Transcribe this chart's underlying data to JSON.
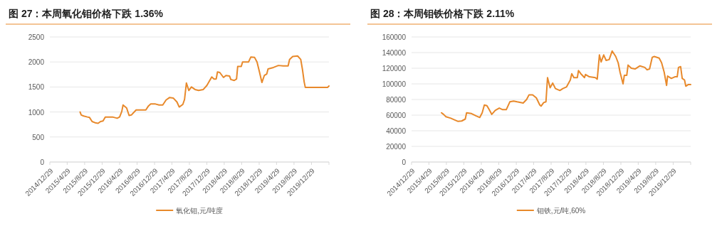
{
  "chart_data": [
    {
      "type": "line",
      "title": "图 27：本周氧化钼价格下跌 1.36%",
      "legend": "bottom",
      "grid": "y",
      "marker": "none",
      "line_style": "solid",
      "xlim": [
        "2014-12-29",
        "2020-04-29"
      ],
      "xticks": [
        {
          "value": "2014-12-29",
          "label": "2014/12/29"
        },
        {
          "value": "2015-04-29",
          "label": "2015/4/29"
        },
        {
          "value": "2015-08-29",
          "label": "2015/8/29"
        },
        {
          "value": "2015-12-29",
          "label": "2015/12/29"
        },
        {
          "value": "2016-04-29",
          "label": "2016/4/29"
        },
        {
          "value": "2016-08-29",
          "label": "2016/8/29"
        },
        {
          "value": "2016-12-29",
          "label": "2016/12/29"
        },
        {
          "value": "2017-04-29",
          "label": "2017/4/29"
        },
        {
          "value": "2017-08-29",
          "label": "2017/8/29"
        },
        {
          "value": "2017-12-29",
          "label": "2017/12/29"
        },
        {
          "value": "2018-04-29",
          "label": "2018/4/29"
        },
        {
          "value": "2018-08-29",
          "label": "2018/8/29"
        },
        {
          "value": "2018-12-29",
          "label": "2018/12/29"
        },
        {
          "value": "2019-04-29",
          "label": "2019/4/29"
        },
        {
          "value": "2019-08-29",
          "label": "2019/8/29"
        },
        {
          "value": "2019-12-29",
          "label": "2019/12/29"
        },
        {
          "value": "2020-04-29",
          "label": null
        }
      ],
      "ylim": [
        0,
        2500
      ],
      "yticks": [
        0,
        500,
        1000,
        1500,
        2000,
        2500
      ],
      "series": [
        {
          "name": "氧化钼,元/吨度",
          "color": "#e8892b",
          "x": [
            "2015-07-28",
            "2015-08-05",
            "2015-08-22",
            "2015-09-17",
            "2015-10-02",
            "2015-10-20",
            "2015-11-15",
            "2015-12-01",
            "2015-12-18",
            "2016-01-04",
            "2016-01-20",
            "2016-03-10",
            "2016-04-12",
            "2016-04-29",
            "2016-05-14",
            "2016-05-23",
            "2016-06-17",
            "2016-07-04",
            "2016-07-20",
            "2016-08-22",
            "2016-09-25",
            "2016-10-29",
            "2016-11-16",
            "2016-12-02",
            "2017-01-04",
            "2017-01-29",
            "2017-02-24",
            "2017-03-19",
            "2017-04-13",
            "2017-05-08",
            "2017-06-03",
            "2017-06-19",
            "2017-07-14",
            "2017-07-26",
            "2017-08-08",
            "2017-08-25",
            "2017-09-12",
            "2017-10-07",
            "2017-11-01",
            "2017-12-04",
            "2017-12-29",
            "2018-02-01",
            "2018-02-17",
            "2018-03-04",
            "2018-03-13",
            "2018-03-29",
            "2018-04-24",
            "2018-05-11",
            "2018-06-05",
            "2018-06-14",
            "2018-07-08",
            "2018-07-24",
            "2018-08-01",
            "2018-08-26",
            "2018-09-04",
            "2018-10-16",
            "2018-11-01",
            "2018-11-27",
            "2018-12-14",
            "2018-12-31",
            "2019-01-17",
            "2019-02-03",
            "2019-02-20",
            "2019-03-01",
            "2019-04-08",
            "2019-05-12",
            "2019-06-15",
            "2019-07-19",
            "2019-07-29",
            "2019-08-20",
            "2019-09-23",
            "2019-10-15",
            "2019-10-27",
            "2019-11-08",
            "2019-11-16",
            "2020-04-19",
            "2020-04-29"
          ],
          "values": [
            1000,
            940,
            920,
            900,
            890,
            810,
            780,
            775,
            810,
            820,
            900,
            900,
            875,
            900,
            1010,
            1140,
            1080,
            930,
            940,
            1040,
            1040,
            1040,
            1120,
            1160,
            1160,
            1140,
            1140,
            1240,
            1290,
            1280,
            1200,
            1100,
            1150,
            1250,
            1580,
            1430,
            1500,
            1450,
            1430,
            1450,
            1530,
            1700,
            1660,
            1660,
            1800,
            1790,
            1690,
            1730,
            1720,
            1650,
            1630,
            1660,
            1910,
            1910,
            2000,
            2000,
            2100,
            2090,
            2000,
            1800,
            1590,
            1730,
            1760,
            1860,
            1890,
            1930,
            1920,
            1920,
            2050,
            2110,
            2120,
            2050,
            1850,
            1600,
            1490,
            1490,
            1520
          ]
        }
      ]
    },
    {
      "type": "line",
      "title": "图 28：本周钼铁价格下跌 2.11%",
      "legend": "bottom",
      "grid": "y",
      "marker": "none",
      "line_style": "solid",
      "xlim": [
        "2014-12-29",
        "2020-04-29"
      ],
      "xticks": [
        {
          "value": "2014-12-29",
          "label": "2014/12/29"
        },
        {
          "value": "2015-04-29",
          "label": "2015/4/29"
        },
        {
          "value": "2015-08-29",
          "label": "2015/8/29"
        },
        {
          "value": "2015-12-29",
          "label": "2015/12/29"
        },
        {
          "value": "2016-04-29",
          "label": "2016/4/29"
        },
        {
          "value": "2016-08-29",
          "label": "2016/8/29"
        },
        {
          "value": "2016-12-29",
          "label": "2016/12/29"
        },
        {
          "value": "2017-04-29",
          "label": "2017/4/29"
        },
        {
          "value": "2017-08-29",
          "label": "2017/8/29"
        },
        {
          "value": "2017-12-29",
          "label": "2017/12/29"
        },
        {
          "value": "2018-04-29",
          "label": "2018/4/29"
        },
        {
          "value": "2018-08-29",
          "label": "2018/8/29"
        },
        {
          "value": "2018-12-29",
          "label": "2018/12/29"
        },
        {
          "value": "2019-04-29",
          "label": "2019/4/29"
        },
        {
          "value": "2019-08-29",
          "label": "2019/8/29"
        },
        {
          "value": "2019-12-29",
          "label": "2019/12/29"
        },
        {
          "value": "2020-04-29",
          "label": null
        }
      ],
      "ylim": [
        0,
        160000
      ],
      "yticks": [
        0,
        20000,
        40000,
        60000,
        80000,
        100000,
        120000,
        140000,
        160000
      ],
      "series": [
        {
          "name": "钼铁,元/吨,60%",
          "color": "#e8892b",
          "x": [
            "2015-07-26",
            "2015-08-09",
            "2015-08-26",
            "2015-09-29",
            "2015-10-24",
            "2015-11-19",
            "2015-12-14",
            "2016-01-08",
            "2016-01-17",
            "2016-02-20",
            "2016-03-24",
            "2016-04-18",
            "2016-05-05",
            "2016-05-20",
            "2016-06-07",
            "2016-06-23",
            "2016-07-11",
            "2016-08-04",
            "2016-09-01",
            "2016-09-25",
            "2016-10-20",
            "2016-11-14",
            "2016-12-10",
            "2017-01-04",
            "2017-02-15",
            "2017-03-11",
            "2017-03-28",
            "2017-04-22",
            "2017-05-18",
            "2017-06-11",
            "2017-06-20",
            "2017-07-08",
            "2017-07-24",
            "2017-08-04",
            "2017-08-22",
            "2017-09-09",
            "2017-09-28",
            "2017-10-29",
            "2017-11-19",
            "2017-12-14",
            "2018-01-10",
            "2018-01-20",
            "2018-02-04",
            "2018-02-28",
            "2018-03-08",
            "2018-03-24",
            "2018-04-19",
            "2018-04-26",
            "2018-05-23",
            "2018-07-04",
            "2018-07-17",
            "2018-08-01",
            "2018-08-13",
            "2018-08-31",
            "2018-09-17",
            "2018-10-08",
            "2018-10-29",
            "2018-11-23",
            "2018-12-10",
            "2018-12-23",
            "2019-01-13",
            "2019-01-22",
            "2019-02-08",
            "2019-02-17",
            "2019-03-12",
            "2019-04-07",
            "2019-05-11",
            "2019-06-14",
            "2019-06-29",
            "2019-07-17",
            "2019-08-05",
            "2019-08-19",
            "2019-09-22",
            "2019-10-09",
            "2019-10-27",
            "2019-11-13",
            "2019-11-20",
            "2019-12-16",
            "2020-01-10",
            "2020-01-26",
            "2020-02-04",
            "2020-02-19",
            "2020-03-01",
            "2020-03-17",
            "2020-03-26",
            "2020-04-11",
            "2020-04-29"
          ],
          "values": [
            63000,
            61000,
            58000,
            56000,
            54000,
            52000,
            52500,
            55000,
            63000,
            62000,
            59000,
            57000,
            63000,
            73000,
            72000,
            67000,
            61000,
            66000,
            69000,
            67000,
            67000,
            77000,
            78000,
            77000,
            75500,
            80000,
            86000,
            86000,
            82000,
            73000,
            71500,
            76000,
            77000,
            108000,
            95000,
            101000,
            94000,
            91500,
            94000,
            96000,
            105000,
            113000,
            108000,
            108000,
            117000,
            113000,
            108000,
            112000,
            109000,
            108000,
            106000,
            137000,
            128000,
            137000,
            130000,
            131000,
            142000,
            135000,
            127000,
            115000,
            100000,
            111000,
            111000,
            124000,
            120000,
            119000,
            123000,
            121000,
            118000,
            119000,
            134000,
            135000,
            133000,
            127000,
            115000,
            98000,
            110000,
            107000,
            109000,
            109000,
            121000,
            122000,
            107000,
            105000,
            97000,
            99000,
            99000
          ]
        }
      ]
    }
  ]
}
